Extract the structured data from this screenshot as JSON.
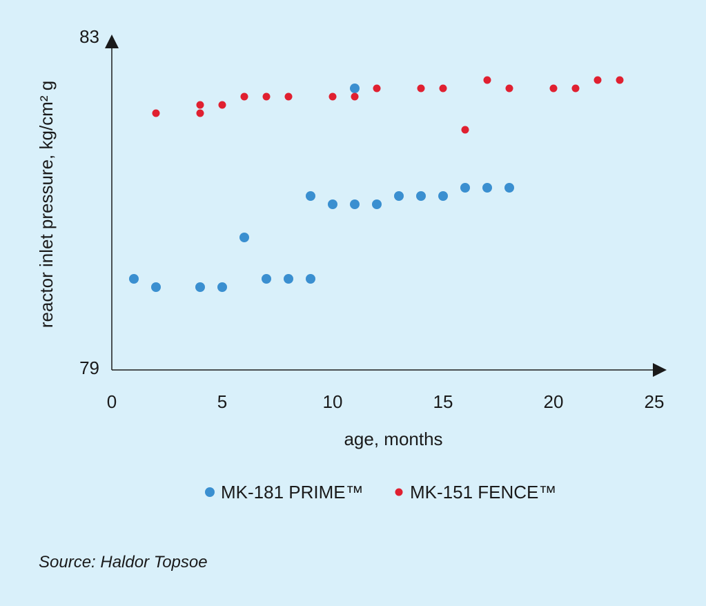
{
  "chart_data": {
    "type": "scatter",
    "xlabel": "age, months",
    "ylabel": "reactor inlet pressure, kg/cm² g",
    "xlim": [
      0,
      25
    ],
    "ylim": [
      79,
      83
    ],
    "x_ticks": [
      "0",
      "5",
      "10",
      "15",
      "20",
      "25"
    ],
    "y_ticks": [
      "79",
      "83"
    ],
    "grid": false,
    "legend_position": "bottom",
    "series": [
      {
        "name": "MK-181 PRIME™",
        "color": "#3a8fd0",
        "points": [
          [
            1,
            80.1
          ],
          [
            2,
            80.0
          ],
          [
            4,
            80.0
          ],
          [
            5,
            80.0
          ],
          [
            6,
            80.6
          ],
          [
            7,
            80.1
          ],
          [
            8,
            80.1
          ],
          [
            9,
            80.1
          ],
          [
            9,
            81.1
          ],
          [
            10,
            81.0
          ],
          [
            11,
            81.0
          ],
          [
            12,
            81.0
          ],
          [
            13,
            81.1
          ],
          [
            14,
            81.1
          ],
          [
            15,
            81.1
          ],
          [
            16,
            81.2
          ],
          [
            17,
            81.2
          ],
          [
            18,
            81.2
          ],
          [
            11,
            82.4
          ]
        ]
      },
      {
        "name": "MK-151 FENCE™",
        "color": "#e02030",
        "points": [
          [
            2,
            82.1
          ],
          [
            4,
            82.2
          ],
          [
            4,
            82.1
          ],
          [
            5,
            82.2
          ],
          [
            6,
            82.3
          ],
          [
            7,
            82.3
          ],
          [
            8,
            82.3
          ],
          [
            10,
            82.3
          ],
          [
            11,
            82.3
          ],
          [
            12,
            82.4
          ],
          [
            14,
            82.4
          ],
          [
            15,
            82.4
          ],
          [
            16,
            81.9
          ],
          [
            17,
            82.5
          ],
          [
            18,
            82.4
          ],
          [
            20,
            82.4
          ],
          [
            21,
            82.4
          ],
          [
            22,
            82.5
          ],
          [
            23,
            82.5
          ]
        ]
      }
    ]
  },
  "source": "Source: Haldor Topsoe"
}
